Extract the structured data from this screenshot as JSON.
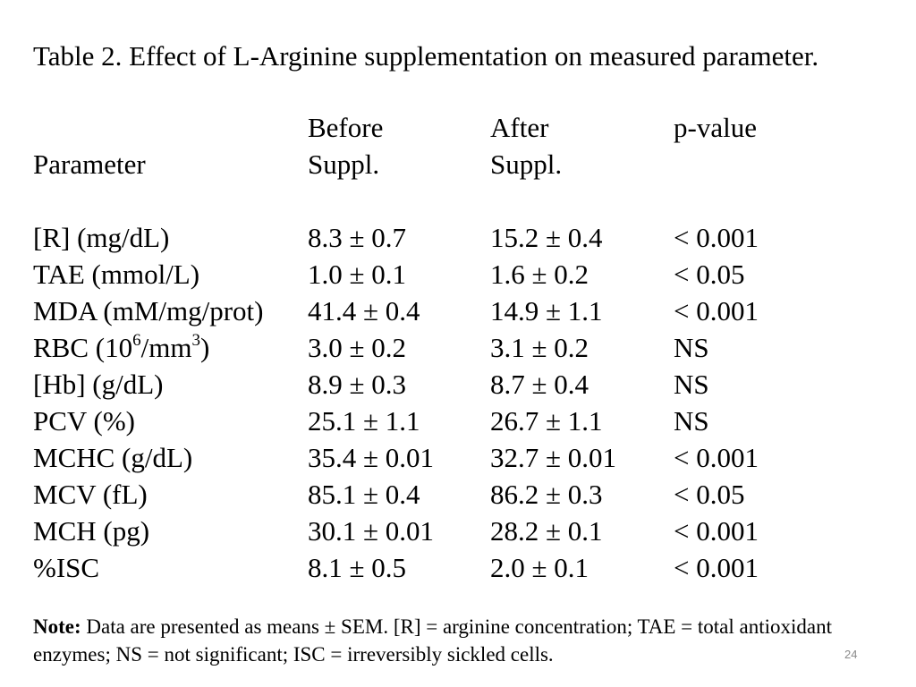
{
  "title": "Table 2. Effect of L-Arginine supplementation on measured parameter.",
  "table": {
    "header_line1": [
      "",
      "Before",
      "After",
      "p-value"
    ],
    "header_line2": [
      "Parameter",
      "Suppl.",
      "Suppl.",
      ""
    ],
    "rows": [
      {
        "param": "[R] (mg/dL)",
        "before": "8.3 ± 0.7",
        "after": "15.2 ± 0.4",
        "p": "< 0.001"
      },
      {
        "param": "TAE (mmol/L)",
        "before": "1.0 ± 0.1",
        "after": "1.6 ± 0.2",
        "p": "< 0.05"
      },
      {
        "param": "MDA (mM/mg/prot)",
        "before": "41.4 ± 0.4",
        "after": "14.9 ± 1.1",
        "p": "< 0.001"
      },
      {
        "param": "RBC (10",
        "param_sup1": "6",
        "param_mid": "/mm",
        "param_sup2": "3",
        "param_end": ")",
        "before": "3.0 ± 0.2",
        "after": "3.1 ± 0.2",
        "p": "NS"
      },
      {
        "param": "[Hb] (g/dL)",
        "before": "8.9 ± 0.3",
        "after": "8.7 ± 0.4",
        "p": "NS"
      },
      {
        "param": "PCV (%)",
        "before": "25.1 ± 1.1",
        "after": "26.7 ± 1.1",
        "p": "NS"
      },
      {
        "param": "MCHC (g/dL)",
        "before": "35.4 ± 0.01",
        "after": "32.7 ± 0.01",
        "p": "< 0.001"
      },
      {
        "param": "MCV (fL)",
        "before": "85.1 ± 0.4",
        "after": "86.2 ± 0.3",
        "p": "< 0.05"
      },
      {
        "param": "MCH (pg)",
        "before": "30.1 ± 0.01",
        "after": "28.2 ± 0.1",
        "p": "< 0.001"
      },
      {
        "param": "%ISC",
        "before": "8.1 ± 0.5",
        "after": "2.0 ± 0.1",
        "p": "< 0.001"
      }
    ]
  },
  "note": {
    "label": "Note:",
    "text": " Data are presented as means ± SEM. [R] = arginine concentration; TAE = total antioxidant enzymes; NS = not significant; ISC = irreversibly sickled cells."
  },
  "page_number": "24"
}
